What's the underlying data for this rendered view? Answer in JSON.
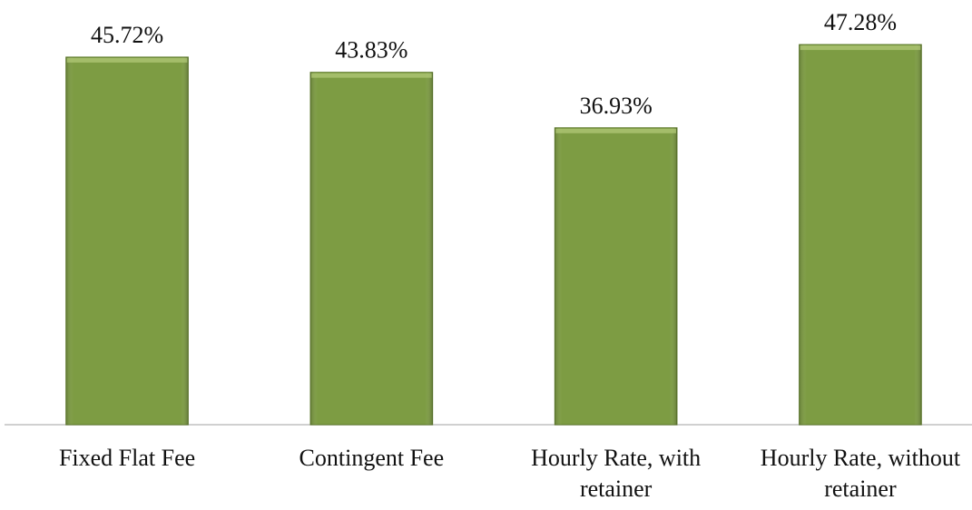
{
  "chart_data": {
    "type": "bar",
    "categories": [
      "Fixed Flat Fee",
      "Contingent Fee",
      "Hourly Rate, with retainer",
      "Hourly Rate, without retainer"
    ],
    "values": [
      45.72,
      43.83,
      36.93,
      47.28
    ],
    "value_labels": [
      "45.72%",
      "43.83%",
      "36.93%",
      "47.28%"
    ],
    "color": "#7d9c43",
    "ylim": [
      0,
      50
    ]
  }
}
